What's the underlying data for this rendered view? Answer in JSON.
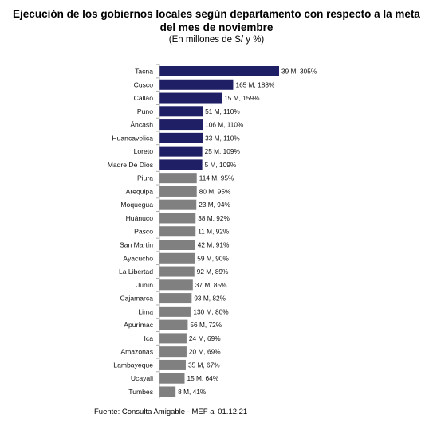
{
  "chart_data": {
    "type": "bar",
    "orientation": "horizontal",
    "title_line1": "Ejecución de los gobiernos locales según departamento con respecto a la meta",
    "title_line2": "del mes de noviembre",
    "subtitle": "(En millones de S/ y %)",
    "source": "Fuente: Consulta Amigable - MEF al 01.12.21",
    "xlim": [
      0,
      320
    ],
    "colors": {
      "highlight": "#1f1f66",
      "normal": "#808080"
    },
    "categories": [
      "Tacna",
      "Cusco",
      "Callao",
      "Puno",
      "Áncash",
      "Huancavelica",
      "Loreto",
      "Madre De Dios",
      "Piura",
      "Arequipa",
      "Moquegua",
      "Huánuco",
      "Pasco",
      "San Martín",
      "Ayacucho",
      "La Libertad",
      "Junín",
      "Cajamarca",
      "Lima",
      "Apurímac",
      "Ica",
      "Amazonas",
      "Lambayeque",
      "Ucayali",
      "Tumbes"
    ],
    "values": [
      305,
      188,
      159,
      110,
      110,
      110,
      109,
      109,
      95,
      95,
      94,
      92,
      92,
      91,
      90,
      89,
      85,
      82,
      80,
      72,
      69,
      69,
      67,
      64,
      41
    ],
    "data_labels": [
      "39 M, 305%",
      "165 M, 188%",
      "15 M, 159%",
      "51 M, 110%",
      "106 M, 110%",
      "33 M, 110%",
      "25 M, 109%",
      "5 M, 109%",
      "114 M, 95%",
      "80 M, 95%",
      "23 M, 94%",
      "38 M, 92%",
      "11 M, 92%",
      "42 M, 91%",
      "59 M, 90%",
      "92 M, 89%",
      "37 M, 85%",
      "93 M, 82%",
      "130 M, 80%",
      "56 M, 72%",
      "24 M, 69%",
      "20 M, 69%",
      "35 M, 67%",
      "15 M, 64%",
      "8 M, 41%"
    ],
    "highlight_threshold": 100,
    "grid": false,
    "legend": "none"
  }
}
